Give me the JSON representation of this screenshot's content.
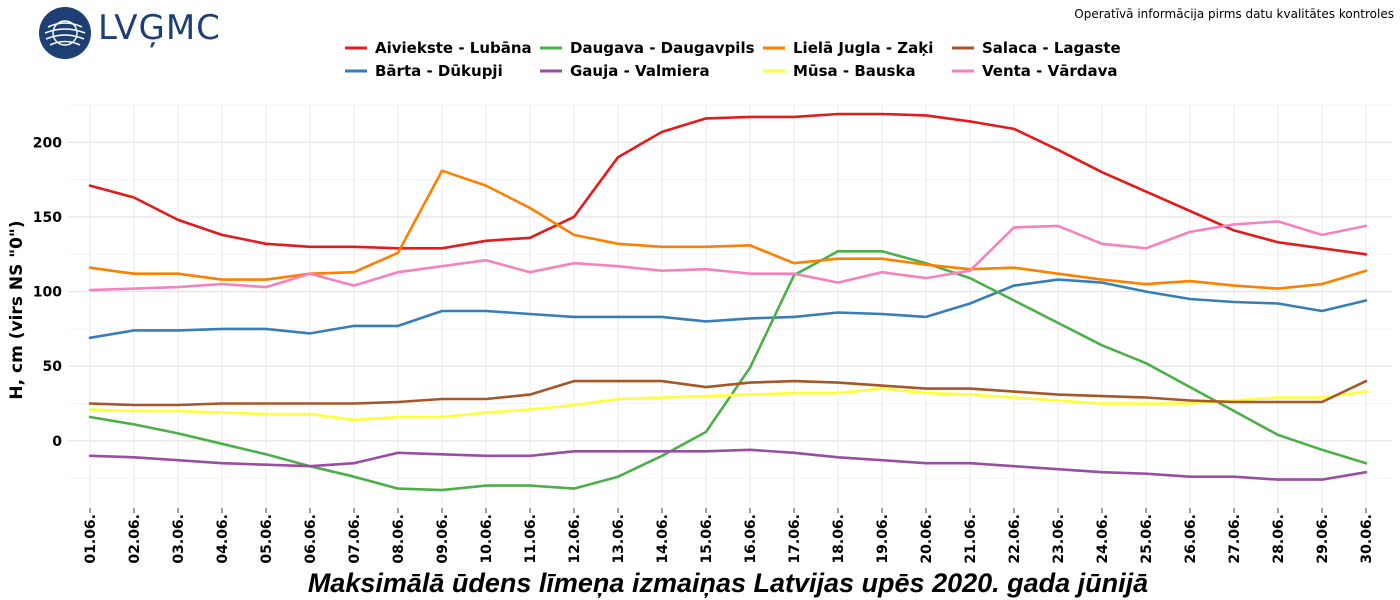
{
  "header": {
    "logo_text": "LVĢMC",
    "subtitle": "Operatīvā informācija pirms datu kvalitātes kontroles"
  },
  "chart_data": {
    "type": "line",
    "title": "Maksimālā ūdens līmeņa izmaiņas Latvijas upēs 2020. gada jūnijā",
    "xlabel": "",
    "ylabel": "H, cm (virs NS \"0\")",
    "ylim": [
      -45,
      225
    ],
    "yticks": [
      0,
      50,
      100,
      150,
      200
    ],
    "grid": true,
    "legend_position": "top",
    "categories": [
      "01.06.",
      "02.06.",
      "03.06.",
      "04.06.",
      "05.06.",
      "06.06.",
      "07.06.",
      "08.06.",
      "09.06.",
      "10.06.",
      "11.06.",
      "12.06.",
      "13.06.",
      "14.06.",
      "15.06.",
      "16.06.",
      "17.06.",
      "18.06.",
      "19.06.",
      "20.06.",
      "21.06.",
      "22.06.",
      "23.06.",
      "24.06.",
      "25.06.",
      "26.06.",
      "27.06.",
      "28.06.",
      "29.06.",
      "30.06."
    ],
    "series": [
      {
        "name": "Aiviekste - Lubāna",
        "color": "#e41a1c",
        "values": [
          171,
          163,
          148,
          138,
          132,
          130,
          130,
          129,
          129,
          134,
          136,
          150,
          190,
          207,
          216,
          217,
          217,
          219,
          219,
          218,
          214,
          209,
          195,
          180,
          167,
          154,
          141,
          133,
          129,
          125
        ]
      },
      {
        "name": "Bārta - Dūkupji",
        "color": "#377eb8",
        "values": [
          69,
          74,
          74,
          75,
          75,
          72,
          77,
          77,
          87,
          87,
          85,
          83,
          83,
          83,
          80,
          82,
          83,
          86,
          85,
          83,
          92,
          104,
          108,
          106,
          100,
          95,
          93,
          92,
          87,
          94
        ]
      },
      {
        "name": "Daugava - Daugavpils",
        "color": "#4daf4a",
        "values": [
          16,
          11,
          5,
          -2,
          -9,
          -17,
          -24,
          -32,
          -33,
          -30,
          -30,
          -32,
          -24,
          -10,
          6,
          49,
          111,
          127,
          127,
          119,
          109,
          94,
          79,
          64,
          52,
          36,
          20,
          4,
          -6,
          -15
        ]
      },
      {
        "name": "Gauja - Valmiera",
        "color": "#984ea3",
        "values": [
          -10,
          -11,
          -13,
          -15,
          -16,
          -17,
          -15,
          -8,
          -9,
          -10,
          -10,
          -7,
          -7,
          -7,
          -7,
          -6,
          -8,
          -11,
          -13,
          -15,
          -15,
          -17,
          -19,
          -21,
          -22,
          -24,
          -24,
          -26,
          -26,
          -21
        ]
      },
      {
        "name": "Lielā Jugla - Zaķi",
        "color": "#ff7f00",
        "values": [
          116,
          112,
          112,
          108,
          108,
          112,
          113,
          126,
          181,
          171,
          156,
          138,
          132,
          130,
          130,
          131,
          119,
          122,
          122,
          118,
          115,
          116,
          112,
          108,
          105,
          107,
          104,
          102,
          105,
          114
        ]
      },
      {
        "name": "Mūsa - Bauska",
        "color": "#ffff33",
        "values": [
          21,
          20,
          20,
          19,
          18,
          18,
          14,
          16,
          16,
          19,
          21,
          24,
          28,
          29,
          30,
          31,
          32,
          32,
          35,
          32,
          31,
          29,
          27,
          25,
          25,
          25,
          27,
          29,
          29,
          33
        ]
      },
      {
        "name": "Salaca - Lagaste",
        "color": "#a65628",
        "values": [
          25,
          24,
          24,
          25,
          25,
          25,
          25,
          26,
          28,
          28,
          31,
          40,
          40,
          40,
          36,
          39,
          40,
          39,
          37,
          35,
          35,
          33,
          31,
          30,
          29,
          27,
          26,
          26,
          26,
          40
        ]
      },
      {
        "name": "Venta - Vārdava",
        "color": "#f781bf",
        "values": [
          101,
          102,
          103,
          105,
          103,
          112,
          104,
          113,
          117,
          121,
          113,
          119,
          117,
          114,
          115,
          112,
          112,
          106,
          113,
          109,
          114,
          143,
          144,
          132,
          129,
          140,
          145,
          147,
          138,
          144
        ]
      }
    ]
  }
}
